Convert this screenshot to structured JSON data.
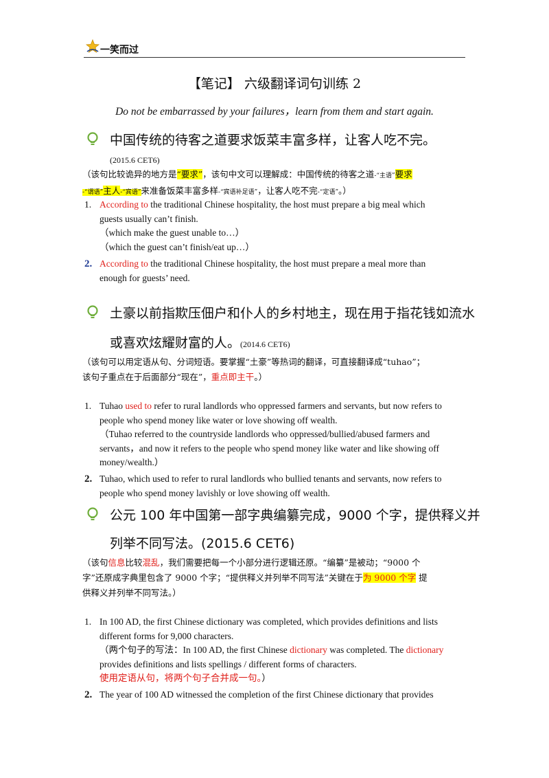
{
  "header": {
    "brand": "一笑而过"
  },
  "title": "【笔记】 六级翻译词句训练 2",
  "motto": "Do not be embarrassed by your failures，learn from them and start again.",
  "q1": {
    "zh": "中国传统的待客之道要求饭菜丰富多样，让客人吃不完。",
    "source": "(2015.6 CET6)",
    "note_a": "（该句比较诡异的地方是",
    "note_hl1": "“要求”",
    "note_b": "，该句中文可以理解成：中国传统的待客之道",
    "tag_subject": "-“主语”",
    "note_hl2": "要求",
    "tag_predicate": "-“谓语”",
    "note_hl3": "主人",
    "tag_object": "-“宾语”",
    "note_c": "来准备饭菜丰富多样",
    "tag_complement": "-“宾语补足语”",
    "note_d": "，让客人吃不完",
    "tag_adverbial": "-“定语”",
    "note_e": "。）",
    "a1_num": "1.",
    "a1_red": "According to",
    "a1_line1": " the traditional Chinese hospitality, the host must prepare a big meal which",
    "a1_line2": "guests usually can’t finish.",
    "a1_alt1": "（which make the guest unable to…）",
    "a1_alt2": "（which the guest can’t finish/eat up…）",
    "a2_num": "2.",
    "a2_red": "According to",
    "a2_line1": " the traditional Chinese hospitality, the host must prepare a meal more than",
    "a2_line2": "enough for guests’ need."
  },
  "q2": {
    "zh_line1": "土豪以前指欺压佃户和仆人的乡村地主，现在用于指花钱如流水",
    "zh_line2": "或喜欢炫耀财富的人。",
    "source": "(2014.6 CET6)",
    "note_line1": "（该句可以用定语从句、分词短语。要掌握“土豪”等热词的翻译，可直接翻译成“tuhao”；",
    "note_line2a": "该句子重点在于后面部分“现在”，",
    "note_red": "重点即主干",
    "note_line2b": "。）",
    "a1_num": "1.",
    "a1_pre": "Tuhao ",
    "a1_red": "used to",
    "a1_line1": " refer to rural landlords who oppressed farmers and servants, but now refers to",
    "a1_line2": "people who spend money like water or love showing off wealth.",
    "a1_alt1": "（Tuhao referred to the countryside landlords who oppressed/bullied/abused farmers and",
    "a1_alt2": "servants，and now it refers to the people who spend money like water and like showing off",
    "a1_alt3": "money/wealth.）",
    "a2_num": "2.",
    "a2_line1": "Tuhao, which used to refer to rural landlords who bullied tenants and servants, now refers to",
    "a2_line2": "people who spend money lavishly or love showing off wealth."
  },
  "q3": {
    "zh_line1": "公元 100 年中国第一部字典编纂完成，9000 个字，提供释义并",
    "zh_line2": "列举不同写法。(2015.6 CET6)",
    "note_1a": "（该句",
    "note_red1": "信息",
    "note_1b": "比较",
    "note_red2": "混乱",
    "note_1c": "，我们需要把每一个小部分进行逻辑还原。“编纂”是被动；“9000 个",
    "note_2a": "字”还原成字典里包含了 9000 个字；“提供释义并列举不同写法”关键在于",
    "note_hl": "为 9000 个字",
    "note_2b": " 提",
    "note_3": "供释义并列举不同写法。）",
    "a1_num": "1.",
    "a1_line1": "In 100 AD, the first Chinese dictionary was completed, which provides definitions and lists",
    "a1_line2": "different forms for 9,000 characters.",
    "a1_alt_a": "（两个句子的写法：In 100 AD, the first Chinese ",
    "a1_alt_red1": "dictionary",
    "a1_alt_b": " was completed. The ",
    "a1_alt_red2": "dictionary",
    "a1_alt2": "provides definitions and lists spellings / different forms of characters.",
    "a1_alt3_red": "使用定语从句，将两个句子合并成一句。",
    "a1_alt3_end": "）",
    "a2_num": "2.",
    "a2_line1": "The year of 100 AD witnessed the completion of the first Chinese dictionary that provides"
  },
  "colors": {
    "accent_red": "#e0201b",
    "highlight": "#ffff00",
    "bulb_green": "#6fae3b"
  },
  "icons": [
    "star-logo-icon",
    "lightbulb-icon"
  ]
}
